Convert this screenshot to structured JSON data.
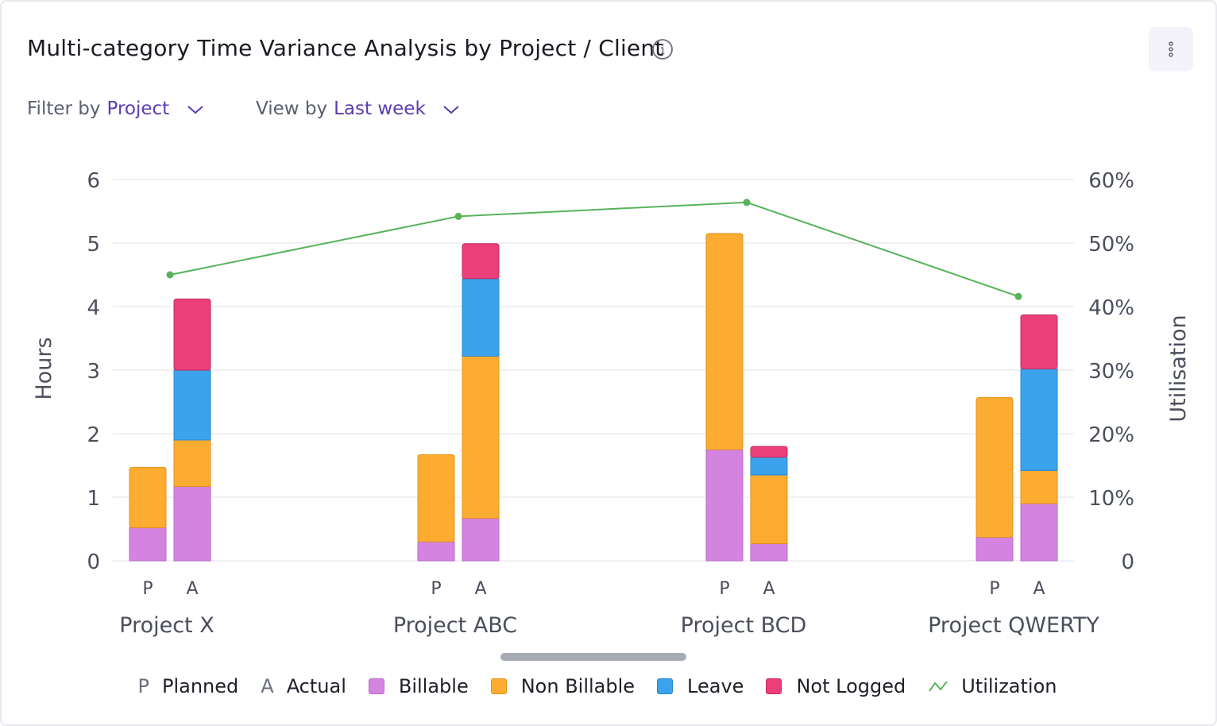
{
  "header": {
    "title": "Multi-category Time Variance Analysis by Project / Client",
    "info_icon": "info-icon",
    "menu_icon": "vertical-dots-icon"
  },
  "filters": {
    "filter_label": "Filter by",
    "filter_value": "Project",
    "view_label": "View by",
    "view_value": "Last week"
  },
  "legend": {
    "planned_letter": "P",
    "planned": "Planned",
    "actual_letter": "A",
    "actual": "Actual",
    "billable": "Billable",
    "non_billable": "Non Billable",
    "leave": "Leave",
    "not_logged": "Not Logged",
    "utilization": "Utilization"
  },
  "colors": {
    "billable": "#d484e0",
    "non_billable": "#fdac32",
    "leave": "#3aa3ec",
    "not_logged": "#ea3f79",
    "utilization": "#57b35a",
    "accent": "#5b3db0"
  },
  "chart_data": {
    "type": "bar",
    "stacked": true,
    "categories": [
      "Project X",
      "Project ABC",
      "Project BCD",
      "Project QWERTY"
    ],
    "bar_labels": [
      "P",
      "A"
    ],
    "ylabel": "Hours",
    "y2label": "Utilisation",
    "ylim": [
      0,
      6
    ],
    "y2lim": [
      0,
      60
    ],
    "yticks": [
      "0",
      "1",
      "2",
      "3",
      "4",
      "5",
      "6"
    ],
    "y2ticks": [
      "0",
      "10%",
      "20%",
      "30%",
      "40%",
      "50%",
      "60%"
    ],
    "grid": true,
    "series": [
      {
        "name": "Billable",
        "planned": [
          0.52,
          0.3,
          1.75,
          0.37
        ],
        "actual": [
          1.17,
          0.67,
          0.27,
          0.9
        ]
      },
      {
        "name": "Non Billable",
        "planned": [
          0.95,
          1.37,
          3.4,
          2.2
        ],
        "actual": [
          0.73,
          2.55,
          1.08,
          0.52
        ]
      },
      {
        "name": "Leave",
        "planned": [
          0,
          0,
          0,
          0
        ],
        "actual": [
          1.1,
          1.22,
          0.28,
          1.6
        ]
      },
      {
        "name": "Not Logged",
        "planned": [
          0,
          0,
          0,
          0
        ],
        "actual": [
          1.12,
          0.55,
          0.17,
          0.85
        ]
      }
    ],
    "line": {
      "name": "Utilization",
      "values": [
        45,
        54.2,
        56.4,
        41.6
      ]
    }
  }
}
